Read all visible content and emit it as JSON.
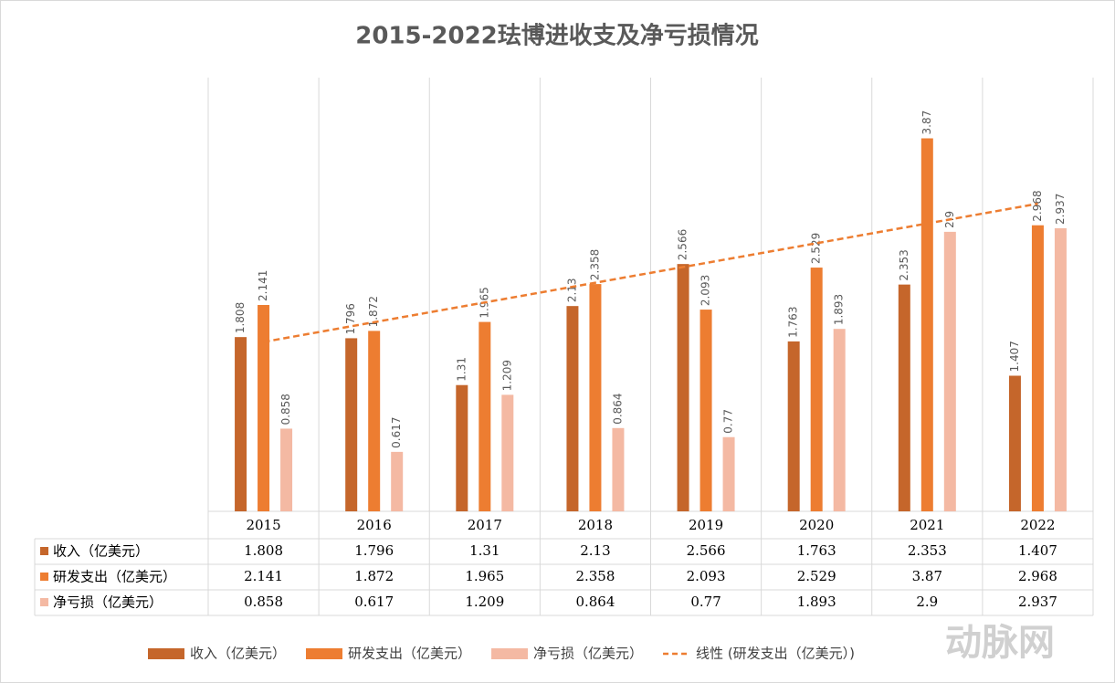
{
  "chart_data": {
    "type": "bar",
    "title": "2015-2022珐博进收支及净亏损情况",
    "categories": [
      "2015",
      "2016",
      "2017",
      "2018",
      "2019",
      "2020",
      "2021",
      "2022"
    ],
    "series": [
      {
        "name": "收入（亿美元）",
        "color": "#c5662b",
        "values": [
          1.808,
          1.796,
          1.31,
          2.13,
          2.566,
          1.763,
          2.353,
          1.407
        ]
      },
      {
        "name": "研发支出（亿美元）",
        "color": "#ed7d31",
        "values": [
          2.141,
          1.872,
          1.965,
          2.358,
          2.093,
          2.529,
          3.87,
          2.968
        ]
      },
      {
        "name": "净亏损（亿美元）",
        "color": "#f4b9a3",
        "values": [
          0.858,
          0.617,
          1.209,
          0.864,
          0.77,
          1.893,
          2.9,
          2.937
        ]
      }
    ],
    "trendline": {
      "label": "线性 (研发支出（亿美元）)",
      "series": 1,
      "color": "#ed7d31"
    },
    "ylim": [
      0,
      4.5
    ],
    "grid": true,
    "watermark": "动脉网"
  }
}
